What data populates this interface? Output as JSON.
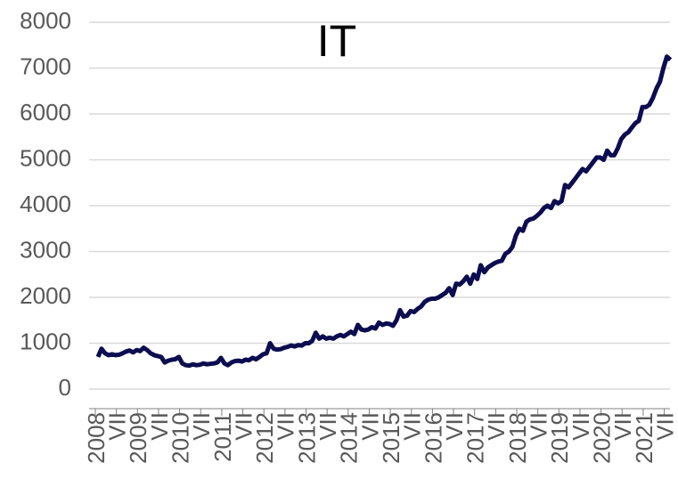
{
  "chart_data": {
    "type": "line",
    "title": "IT",
    "color": "#0c0c50",
    "categories": [
      "2008",
      null,
      null,
      null,
      null,
      null,
      "VII",
      null,
      null,
      null,
      null,
      null,
      "2009",
      null,
      null,
      null,
      null,
      null,
      "VII",
      null,
      null,
      null,
      null,
      null,
      "2010",
      null,
      null,
      null,
      null,
      null,
      "VII",
      null,
      null,
      null,
      null,
      null,
      "2011",
      null,
      null,
      null,
      null,
      null,
      "VII",
      null,
      null,
      null,
      null,
      null,
      "2012",
      null,
      null,
      null,
      null,
      null,
      "VII",
      null,
      null,
      null,
      null,
      null,
      "2013",
      null,
      null,
      null,
      null,
      null,
      "VII",
      null,
      null,
      null,
      null,
      null,
      "2014",
      null,
      null,
      null,
      null,
      null,
      "VII",
      null,
      null,
      null,
      null,
      null,
      "2015",
      null,
      null,
      null,
      null,
      null,
      "VII",
      null,
      null,
      null,
      null,
      null,
      "2016",
      null,
      null,
      null,
      null,
      null,
      "VII",
      null,
      null,
      null,
      null,
      null,
      "2017",
      null,
      null,
      null,
      null,
      null,
      "VII",
      null,
      null,
      null,
      null,
      null,
      "2018",
      null,
      null,
      null,
      null,
      null,
      "VII",
      null,
      null,
      null,
      null,
      null,
      "2019",
      null,
      null,
      null,
      null,
      null,
      "VII",
      null,
      null,
      null,
      null,
      null,
      "2020",
      null,
      null,
      null,
      null,
      null,
      "VII",
      null,
      null,
      null,
      null,
      null,
      "2021",
      null,
      null,
      null,
      null,
      null,
      "VII",
      null
    ],
    "values": [
      700,
      880,
      780,
      740,
      760,
      740,
      750,
      780,
      820,
      840,
      800,
      850,
      830,
      900,
      850,
      780,
      740,
      720,
      700,
      580,
      620,
      640,
      650,
      700,
      560,
      520,
      510,
      540,
      520,
      530,
      560,
      540,
      550,
      560,
      580,
      680,
      560,
      520,
      580,
      610,
      620,
      600,
      640,
      630,
      680,
      650,
      700,
      760,
      780,
      1000,
      880,
      860,
      870,
      900,
      920,
      950,
      930,
      960,
      950,
      1000,
      1000,
      1050,
      1230,
      1100,
      1150,
      1100,
      1120,
      1100,
      1150,
      1180,
      1150,
      1200,
      1250,
      1200,
      1400,
      1300,
      1280,
      1300,
      1350,
      1320,
      1450,
      1400,
      1430,
      1420,
      1380,
      1500,
      1720,
      1580,
      1600,
      1700,
      1680,
      1750,
      1800,
      1900,
      1950,
      1970,
      1970,
      2000,
      2050,
      2100,
      2200,
      2050,
      2300,
      2280,
      2350,
      2450,
      2300,
      2500,
      2400,
      2700,
      2550,
      2650,
      2700,
      2750,
      2780,
      2800,
      2950,
      3000,
      3100,
      3350,
      3500,
      3450,
      3650,
      3700,
      3720,
      3780,
      3850,
      3950,
      4000,
      3950,
      4100,
      4050,
      4100,
      4450,
      4400,
      4500,
      4600,
      4700,
      4800,
      4750,
      4850,
      4950,
      5050,
      5050,
      5000,
      5200,
      5100,
      5100,
      5250,
      5450,
      5550,
      5600,
      5700,
      5800,
      5850,
      6150,
      6150,
      6200,
      6350,
      6550,
      6700,
      7000,
      7250,
      7180
    ],
    "ylim": [
      0,
      8000
    ],
    "yticks": [
      0,
      1000,
      2000,
      3000,
      4000,
      5000,
      6000,
      7000,
      8000
    ],
    "grid": true
  }
}
